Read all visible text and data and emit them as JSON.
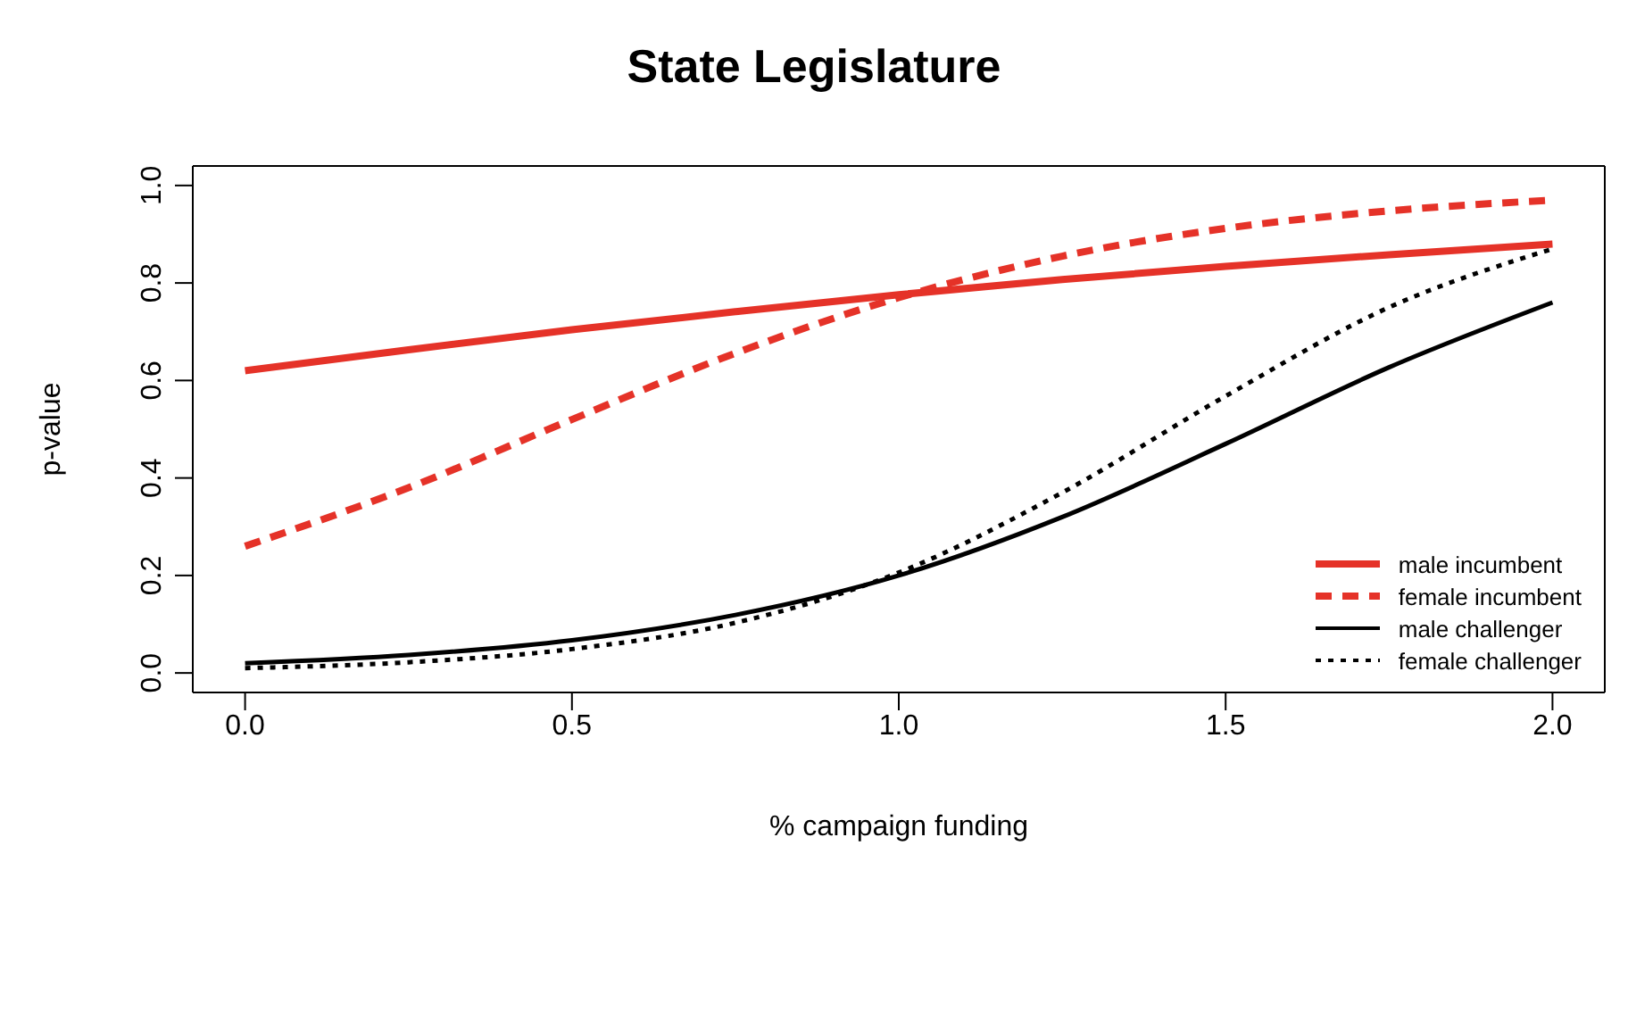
{
  "chart_data": {
    "type": "line",
    "title": "State Legislature",
    "xlabel": "% campaign funding",
    "ylabel": "p-value",
    "x": [
      0,
      0.25,
      0.5,
      0.75,
      1,
      1.25,
      1.5,
      1.75,
      2
    ],
    "series": [
      {
        "name": "male incumbent",
        "color": "#e53228",
        "line_style": "solid",
        "values": [
          0.62,
          0.663,
          0.704,
          0.741,
          0.776,
          0.807,
          0.834,
          0.858,
          0.88
        ]
      },
      {
        "name": "female incumbent",
        "color": "#e53228",
        "line_style": "dashed",
        "values": [
          0.26,
          0.38,
          0.52,
          0.656,
          0.77,
          0.855,
          0.912,
          0.948,
          0.97
        ]
      },
      {
        "name": "male challenger",
        "color": "#000000",
        "line_style": "solid",
        "values": [
          0.02,
          0.037,
          0.067,
          0.119,
          0.2,
          0.32,
          0.47,
          0.627,
          0.76
        ]
      },
      {
        "name": "female challenger",
        "color": "#000000",
        "line_style": "dotted",
        "values": [
          0.01,
          0.022,
          0.049,
          0.103,
          0.206,
          0.37,
          0.568,
          0.75,
          0.87
        ]
      }
    ],
    "xlim": [
      -0.08,
      2.08
    ],
    "ylim": [
      -0.04,
      1.04
    ],
    "xticks": [
      {
        "value": 0,
        "label": "0.0"
      },
      {
        "value": 0.5,
        "label": "0.5"
      },
      {
        "value": 1,
        "label": "1.0"
      },
      {
        "value": 1.5,
        "label": "1.5"
      },
      {
        "value": 2,
        "label": "2.0"
      }
    ],
    "yticks": [
      {
        "value": 0,
        "label": "0.0"
      },
      {
        "value": 0.2,
        "label": "0.2"
      },
      {
        "value": 0.4,
        "label": "0.4"
      },
      {
        "value": 0.6,
        "label": "0.6"
      },
      {
        "value": 0.8,
        "label": "0.8"
      },
      {
        "value": 1,
        "label": "1.0"
      }
    ],
    "grid": false,
    "legend": "bottom right",
    "marker": "none"
  }
}
